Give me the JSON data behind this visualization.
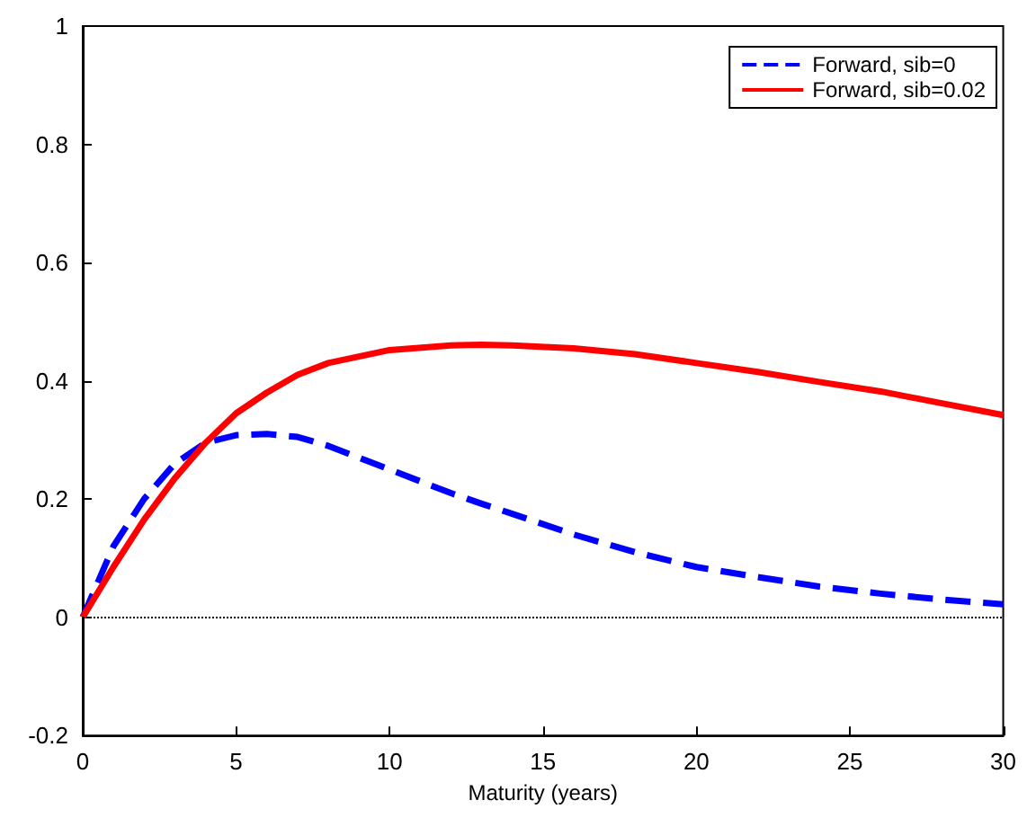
{
  "chart_data": {
    "type": "line",
    "xlabel": "Maturity (years)",
    "xlim": [
      0,
      30
    ],
    "xticks": [
      0,
      5,
      10,
      15,
      20,
      25,
      30
    ],
    "ylim": [
      -0.2,
      1
    ],
    "yticks": [
      -0.2,
      0,
      0.2,
      0.4,
      0.6,
      0.8,
      1
    ],
    "grid": false,
    "legend": "top right",
    "marker": "none",
    "x": [
      0,
      1,
      2,
      3,
      4,
      5,
      6,
      7,
      8,
      10,
      12,
      13,
      14,
      16,
      18,
      20,
      22,
      24,
      26,
      28,
      30
    ],
    "series": [
      {
        "name": "Forward, sib=0",
        "color": "#0000ff",
        "line_style": "dashed",
        "values": [
          0,
          0.12,
          0.2,
          0.26,
          0.295,
          0.308,
          0.31,
          0.305,
          0.29,
          0.25,
          0.21,
          0.192,
          0.175,
          0.14,
          0.11,
          0.085,
          0.068,
          0.052,
          0.04,
          0.03,
          0.022
        ]
      },
      {
        "name": "Forward, sib=0.02",
        "color": "#ff0000",
        "line_style": "solid",
        "values": [
          0,
          0.085,
          0.165,
          0.235,
          0.295,
          0.345,
          0.38,
          0.41,
          0.43,
          0.452,
          0.46,
          0.461,
          0.46,
          0.455,
          0.445,
          0.43,
          0.415,
          0.398,
          0.382,
          0.362,
          0.342
        ]
      }
    ],
    "ref_lines": [
      {
        "axis": "y",
        "value": 0,
        "color": "#000000",
        "line_style": "dotted"
      }
    ]
  }
}
